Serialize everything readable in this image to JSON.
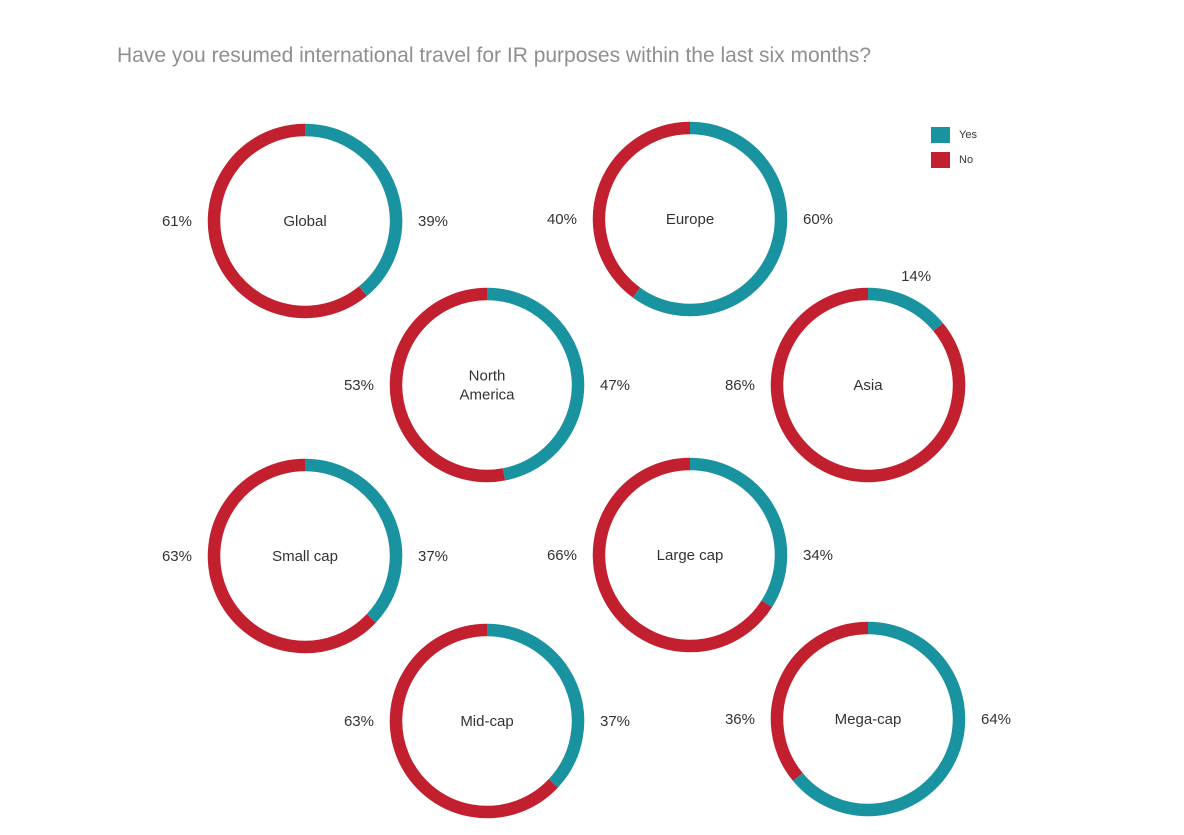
{
  "chart_data": {
    "type": "donut",
    "title": "Have you resumed international travel for IR purposes within the last six months?",
    "colors": {
      "yes": "#1a93a0",
      "no": "#c2202f"
    },
    "legend": {
      "placement": "top-right",
      "items": [
        {
          "name": "Yes",
          "color": "#1a93a0"
        },
        {
          "name": "No",
          "color": "#c2202f"
        }
      ]
    },
    "series": [
      {
        "name": "Yes"
      },
      {
        "name": "No"
      }
    ],
    "charts": [
      {
        "category": [
          "Global"
        ],
        "yes": 39,
        "no": 61,
        "yes_label": "39%",
        "no_label": "61%"
      },
      {
        "category": [
          "Europe"
        ],
        "yes": 60,
        "no": 40,
        "yes_label": "60%",
        "no_label": "40%"
      },
      {
        "category": [
          "North",
          "America"
        ],
        "yes": 47,
        "no": 53,
        "yes_label": "47%",
        "no_label": "53%"
      },
      {
        "category": [
          "Asia"
        ],
        "yes": 14,
        "no": 86,
        "yes_label": "14%",
        "no_label": "86%"
      },
      {
        "category": [
          "Small cap"
        ],
        "yes": 37,
        "no": 63,
        "yes_label": "37%",
        "no_label": "63%"
      },
      {
        "category": [
          "Large cap"
        ],
        "yes": 34,
        "no": 66,
        "yes_label": "34%",
        "no_label": "66%"
      },
      {
        "category": [
          "Mid-cap"
        ],
        "yes": 37,
        "no": 63,
        "yes_label": "37%",
        "no_label": "63%"
      },
      {
        "category": [
          "Mega-cap"
        ],
        "yes": 64,
        "no": 36,
        "yes_label": "64%",
        "no_label": "36%"
      }
    ]
  }
}
